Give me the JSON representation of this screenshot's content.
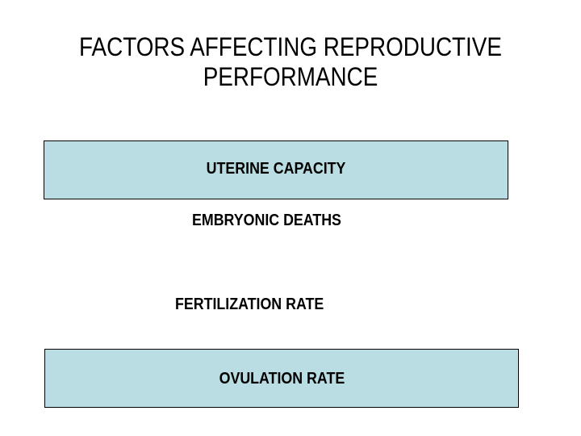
{
  "slide": {
    "title": "FACTORS AFFECTING REPRODUCTIVE PERFORMANCE",
    "factors": [
      {
        "label": "UTERINE CAPACITY",
        "style": "boxed"
      },
      {
        "label": "EMBRYONIC DEATHS",
        "style": "plain"
      },
      {
        "label": "FERTILIZATION RATE",
        "style": "plain"
      },
      {
        "label": "OVULATION RATE",
        "style": "boxed"
      }
    ],
    "colors": {
      "background": "#ffffff",
      "box_fill": "#b9dde2",
      "box_border": "#000000",
      "text": "#000000"
    }
  }
}
